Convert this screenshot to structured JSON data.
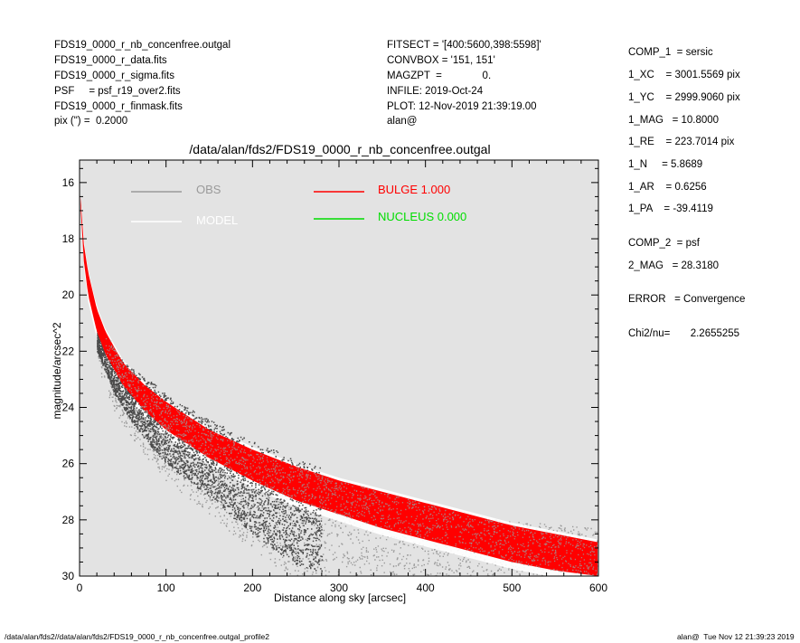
{
  "header_left": [
    "FDS19_0000_r_nb_concenfree.outgal",
    "FDS19_0000_r_data.fits",
    "FDS19_0000_r_sigma.fits",
    "PSF     = psf_r19_over2.fits",
    "FDS19_0000_r_finmask.fits",
    "pix (\") =  0.2000"
  ],
  "header_mid": [
    "FITSECT = '[400:5600,398:5598]'",
    "CONVBOX = '151, 151'",
    "MAGZPT  =              0.",
    "INFILE: 2019-Oct-24",
    "PLOT: 12-Nov-2019 21:39:19.00",
    "alan@"
  ],
  "params": {
    "comp1": "COMP_1  = sersic",
    "xc": "1_XC    = 3001.5569 pix",
    "yc": "1_YC    = 2999.9060 pix",
    "mag": "1_MAG   = 10.8000",
    "re": "1_RE    = 223.7014 pix",
    "n": "1_N     = 5.8689",
    "ar": "1_AR    = 0.6256",
    "pa": "1_PA    = -39.4119",
    "comp2": "COMP_2  = psf",
    "mag2": "2_MAG   = 28.3180",
    "error": "ERROR   = Convergence",
    "chi2": "Chi2/nu=       2.2655255"
  },
  "footer": {
    "left": "/data/alan/fds2//data/alan/fds2/FDS19_0000_r_nb_concenfree.outgal_profile2",
    "right": "alan@  Tue Nov 12 21:39:23 2019"
  },
  "colors": {
    "background": "#e3e3e3",
    "obs_dark": "#4a4a4a",
    "obs_light": "#9a9a9a",
    "model": "#ffffff",
    "bulge": "#ff0000",
    "nucleus": "#00dd00"
  },
  "chart_data": {
    "type": "scatter",
    "title": "/data/alan/fds2/FDS19_0000_r_nb_concenfree.outgal",
    "xlabel": "Distance along sky [arcsec]",
    "ylabel": "magnitude/arcsec^2",
    "xlim": [
      0,
      600
    ],
    "ylim": [
      30,
      15.2
    ],
    "y_inverted": true,
    "xticks": [
      0,
      100,
      200,
      300,
      400,
      500,
      600
    ],
    "yticks": [
      16,
      18,
      20,
      22,
      24,
      26,
      28,
      30
    ],
    "grid": false,
    "legend": [
      {
        "label": "OBS",
        "color": "#9a9a9a"
      },
      {
        "label": "MODEL",
        "color": "#ffffff"
      },
      {
        "label": "BULGE  1.000",
        "color": "#ff0000"
      },
      {
        "label": "NUCLEUS  0.000",
        "color": "#00dd00"
      }
    ],
    "legend_placement": "top",
    "series": [
      {
        "name": "BULGE",
        "x": [
          1,
          5,
          10,
          20,
          30,
          50,
          75,
          100,
          150,
          200,
          250,
          300,
          350,
          400,
          450,
          500,
          550,
          600
        ],
        "y_bright": [
          16.5,
          18.2,
          19.2,
          20.5,
          21.3,
          22.4,
          23.2,
          23.8,
          24.8,
          25.5,
          26.1,
          26.6,
          27.0,
          27.4,
          27.8,
          28.2,
          28.5,
          28.8
        ],
        "y_faint": [
          16.8,
          18.8,
          20.0,
          21.3,
          22.1,
          23.2,
          24.1,
          24.8,
          25.8,
          26.6,
          27.3,
          27.8,
          28.3,
          28.7,
          29.1,
          29.5,
          29.8,
          30.0
        ]
      },
      {
        "name": "OBS",
        "x": [
          5,
          20,
          40,
          60,
          80,
          100,
          150,
          200,
          250,
          300,
          400,
          500,
          600
        ],
        "y_bright": [
          18.5,
          20.8,
          22.0,
          22.6,
          23.0,
          23.5,
          24.4,
          25.2,
          25.8,
          26.3,
          27.2,
          27.7,
          28.0
        ],
        "y_faint": [
          19.5,
          22.0,
          23.5,
          24.5,
          25.3,
          26.0,
          27.2,
          28.5,
          29.6,
          30.0,
          30.0,
          30.0,
          30.0
        ]
      }
    ]
  }
}
